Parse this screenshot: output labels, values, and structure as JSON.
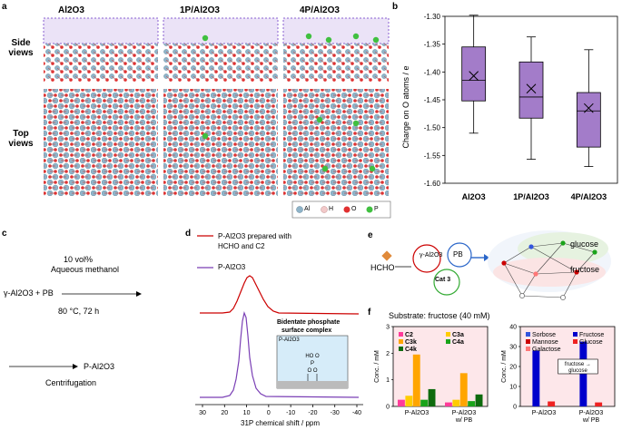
{
  "panels": {
    "a": "a",
    "b": "b",
    "c": "c",
    "d": "d",
    "e": "e",
    "f": "f"
  },
  "panel_a": {
    "columns": [
      "Al2O3",
      "1P/Al2O3",
      "4P/Al2O3"
    ],
    "row_side": "Side views",
    "row_top": "Top views",
    "legend": [
      "Al",
      "H",
      "O",
      "P"
    ],
    "colors": {
      "Al": "#8fb4c9",
      "H": "#f2c9c9",
      "O": "#e03030",
      "P": "#40c040"
    }
  },
  "chart_data": {
    "type": "box",
    "ylabel": "Charge on O atoms / e",
    "ylim": [
      -1.6,
      -1.3
    ],
    "yticks": [
      "-1.30",
      "-1.35",
      "-1.40",
      "-1.45",
      "-1.50",
      "-1.55",
      "-1.60"
    ],
    "categories": [
      "Al2O3",
      "1P/Al2O3",
      "4P/Al2O3"
    ],
    "boxes": [
      {
        "min": -1.51,
        "q1": -1.452,
        "median": -1.415,
        "mean": -1.407,
        "q3": -1.355,
        "max": -1.298
      },
      {
        "min": -1.557,
        "q1": -1.483,
        "median": -1.445,
        "mean": -1.43,
        "q3": -1.382,
        "max": -1.337
      },
      {
        "min": -1.57,
        "q1": -1.535,
        "median": -1.47,
        "mean": -1.465,
        "q3": -1.437,
        "max": -1.36
      }
    ],
    "color": "#a37cc9"
  },
  "panel_c": {
    "reagent": "γ-Al2O3 + PB",
    "cond1": "10 vol%",
    "cond2": "Aqueous methanol",
    "cond3": "80 °C, 72 h",
    "step2": "Centrifugation",
    "product": "P-Al2O3"
  },
  "panel_d": {
    "legend_red_1": "P-Al2O3 prepared with",
    "legend_red_2": "HCHO and C2",
    "legend_purple": "P-Al2O3",
    "inset_title_1": "Bidentate phosphate",
    "inset_title_2": "surface complex",
    "inset_label": "P-Al2O3",
    "xlabel": "31P chemical shift / ppm",
    "xticks": [
      "30",
      "20",
      "10",
      "0",
      "-10",
      "-20",
      "-30",
      "-40"
    ]
  },
  "panel_e": {
    "hcho": "HCHO",
    "catalyst": "γ-Al2O3",
    "pb": "PB",
    "cat3": "Cat 3",
    "glucose": "glucose",
    "fructose": "fructose"
  },
  "panel_f": {
    "title": "Substrate: fructose (40 mM)",
    "ylabel": "Conc. / mM",
    "left": {
      "ylim": [
        0,
        3
      ],
      "yticks": [
        "0",
        "1",
        "2",
        "3"
      ],
      "legend": [
        "C2",
        "C3a",
        "C3k",
        "C4a",
        "C4k"
      ],
      "colors": [
        "#ff3b9a",
        "#ffcc00",
        "#ffa500",
        "#1aa31a",
        "#0e6b0e"
      ],
      "groups": [
        {
          "label": "P-Al2O3",
          "values": [
            0.25,
            0.4,
            1.95,
            0.25,
            0.65
          ]
        },
        {
          "label": "P-Al2O3 w/ PB",
          "values": [
            0.15,
            0.25,
            1.25,
            0.2,
            0.45
          ]
        }
      ]
    },
    "right": {
      "ylim": [
        0,
        40
      ],
      "yticks": [
        "0",
        "10",
        "20",
        "30",
        "40"
      ],
      "legend": [
        "Sorbose",
        "Fructose",
        "Mannose",
        "Glucose",
        "Galactose"
      ],
      "colors": [
        "#3355dd",
        "#0000cc",
        "#cc0000",
        "#ee2222",
        "#ff7777"
      ],
      "annotation_1": "fructose →",
      "annotation_2": "glucose",
      "groups": [
        {
          "label": "P-Al2O3",
          "values": [
            0,
            28,
            0,
            2.5,
            0
          ]
        },
        {
          "label": "P-Al2O3 w/ PB",
          "values": [
            0,
            32.5,
            0,
            2,
            0
          ]
        }
      ]
    }
  }
}
